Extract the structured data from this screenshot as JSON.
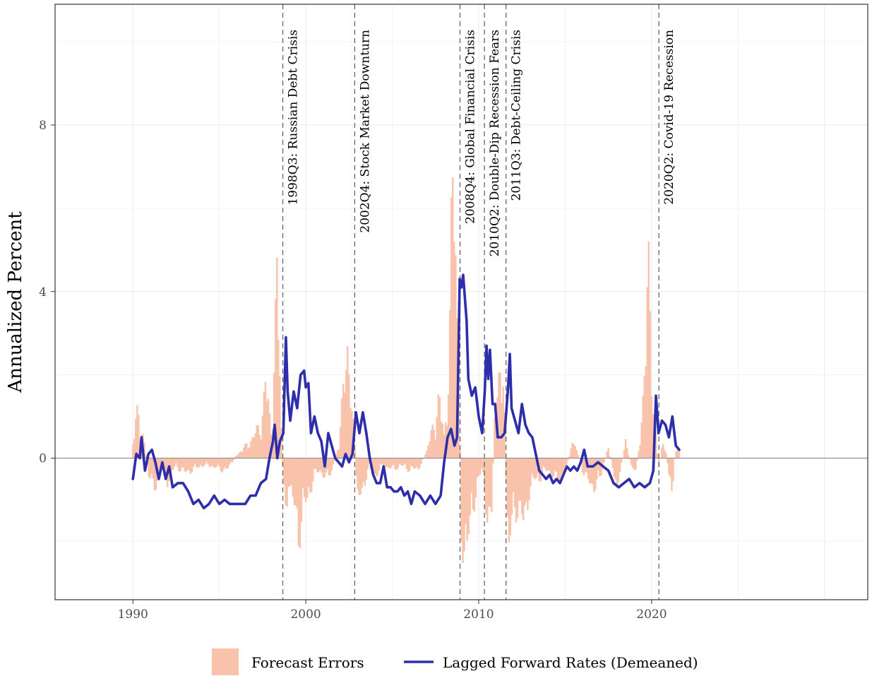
{
  "colors": {
    "bars": "#f8c2ab",
    "line": "#2e2eaa",
    "event_line": "#666666",
    "zero_line": "#8c8c8c",
    "grid": "#ebebeb",
    "panel_border": "#333333"
  },
  "chart_data": {
    "type": "bar",
    "xlabel": "",
    "ylabel": "Annualized Percent",
    "xlim": [
      1985.5,
      2032.5
    ],
    "ylim": [
      -3.4,
      10.9
    ],
    "xticks": [
      1990,
      2000,
      2010,
      2020
    ],
    "xtick_labels": [
      "1990",
      "2000",
      "2010",
      "2020"
    ],
    "yticks": [
      0,
      4,
      8
    ],
    "ytick_labels": [
      "0",
      "4",
      "8"
    ],
    "grid": true,
    "legend_position": "bottom",
    "events": [
      {
        "x": 1998.67,
        "label": "1998Q3:  Russian Debt Crisis"
      },
      {
        "x": 2002.83,
        "label": "2002Q4:  Stock Market Downturn"
      },
      {
        "x": 2008.92,
        "label": "2008Q4:  Global Financial Crisis"
      },
      {
        "x": 2010.33,
        "label": "2010Q2:  Double-Dip Recession Fears"
      },
      {
        "x": 2011.58,
        "label": "2011Q3:  Debt-Ceiling Crisis"
      },
      {
        "x": 2020.42,
        "label": "2020Q2:  Covid-19 Recession"
      }
    ],
    "series": [
      {
        "name": "Forecast Errors",
        "type": "bar",
        "anchors": [
          [
            1990.0,
            0.4
          ],
          [
            1990.3,
            1.3
          ],
          [
            1990.6,
            0.6
          ],
          [
            1990.9,
            -0.4
          ],
          [
            1991.2,
            -0.9
          ],
          [
            1991.6,
            -0.3
          ],
          [
            1992.0,
            -0.6
          ],
          [
            1992.5,
            -0.2
          ],
          [
            1993.0,
            -0.4
          ],
          [
            1993.5,
            -0.3
          ],
          [
            1994.0,
            -0.2
          ],
          [
            1994.5,
            -0.2
          ],
          [
            1995.0,
            -0.3
          ],
          [
            1995.5,
            -0.3
          ],
          [
            1996.0,
            0.1
          ],
          [
            1996.5,
            0.3
          ],
          [
            1997.0,
            0.6
          ],
          [
            1997.4,
            0.9
          ],
          [
            1997.7,
            2.0
          ],
          [
            1998.0,
            0.8
          ],
          [
            1998.2,
            3.0
          ],
          [
            1998.35,
            4.6
          ],
          [
            1998.5,
            2.4
          ],
          [
            1998.6,
            0.5
          ],
          [
            1998.8,
            -1.7
          ],
          [
            1999.0,
            -0.6
          ],
          [
            1999.3,
            -1.3
          ],
          [
            1999.6,
            -2.0
          ],
          [
            1999.9,
            -1.4
          ],
          [
            2000.2,
            -0.9
          ],
          [
            2000.5,
            -0.5
          ],
          [
            2000.8,
            -0.3
          ],
          [
            2001.2,
            -0.6
          ],
          [
            2001.6,
            -0.2
          ],
          [
            2001.9,
            0.4
          ],
          [
            2002.2,
            1.8
          ],
          [
            2002.4,
            3.4
          ],
          [
            2002.6,
            1.8
          ],
          [
            2002.8,
            0.5
          ],
          [
            2003.0,
            -1.3
          ],
          [
            2003.3,
            -0.8
          ],
          [
            2003.6,
            -0.3
          ],
          [
            2004.0,
            -0.5
          ],
          [
            2004.5,
            -0.2
          ],
          [
            2005.0,
            -0.3
          ],
          [
            2005.5,
            -0.2
          ],
          [
            2006.0,
            -0.3
          ],
          [
            2006.5,
            -0.3
          ],
          [
            2007.0,
            0.2
          ],
          [
            2007.4,
            0.9
          ],
          [
            2007.7,
            1.6
          ],
          [
            2008.0,
            0.6
          ],
          [
            2008.3,
            2.5
          ],
          [
            2008.5,
            7.8
          ],
          [
            2008.7,
            5.2
          ],
          [
            2008.85,
            2.2
          ],
          [
            2009.0,
            -1.9
          ],
          [
            2009.3,
            -2.8
          ],
          [
            2009.6,
            -1.3
          ],
          [
            2009.9,
            -0.9
          ],
          [
            2010.2,
            -0.2
          ],
          [
            2010.5,
            -1.6
          ],
          [
            2010.7,
            -2.4
          ],
          [
            2010.9,
            1.0
          ],
          [
            2011.1,
            1.5
          ],
          [
            2011.3,
            3.6
          ],
          [
            2011.5,
            1.0
          ],
          [
            2011.7,
            -2.5
          ],
          [
            2012.0,
            -1.6
          ],
          [
            2012.3,
            -1.2
          ],
          [
            2012.6,
            -1.9
          ],
          [
            2012.9,
            -0.9
          ],
          [
            2013.2,
            -0.6
          ],
          [
            2013.6,
            -0.5
          ],
          [
            2014.0,
            -0.3
          ],
          [
            2014.5,
            -0.6
          ],
          [
            2015.0,
            -0.4
          ],
          [
            2015.5,
            0.5
          ],
          [
            2016.0,
            -0.3
          ],
          [
            2016.5,
            -0.8
          ],
          [
            2017.0,
            -0.6
          ],
          [
            2017.5,
            0.3
          ],
          [
            2018.0,
            -0.8
          ],
          [
            2018.5,
            0.4
          ],
          [
            2019.0,
            -0.5
          ],
          [
            2019.3,
            0.3
          ],
          [
            2019.6,
            2.6
          ],
          [
            2019.8,
            4.9
          ],
          [
            2020.0,
            2.4
          ],
          [
            2020.2,
            1.0
          ],
          [
            2020.4,
            -0.3
          ],
          [
            2020.7,
            0.6
          ],
          [
            2021.0,
            -0.4
          ],
          [
            2021.2,
            -0.9
          ],
          [
            2021.4,
            0.4
          ],
          [
            2021.6,
            0.2
          ]
        ]
      },
      {
        "name": "Lagged Forward Rates (Demeaned)",
        "type": "line",
        "points": [
          [
            1990.0,
            -0.5
          ],
          [
            1990.2,
            0.1
          ],
          [
            1990.4,
            0.0
          ],
          [
            1990.5,
            0.5
          ],
          [
            1990.7,
            -0.3
          ],
          [
            1990.9,
            0.1
          ],
          [
            1991.1,
            0.2
          ],
          [
            1991.3,
            -0.1
          ],
          [
            1991.5,
            -0.5
          ],
          [
            1991.7,
            -0.1
          ],
          [
            1991.9,
            -0.5
          ],
          [
            1992.1,
            -0.2
          ],
          [
            1992.3,
            -0.7
          ],
          [
            1992.6,
            -0.6
          ],
          [
            1992.9,
            -0.6
          ],
          [
            1993.2,
            -0.8
          ],
          [
            1993.5,
            -1.1
          ],
          [
            1993.8,
            -1.0
          ],
          [
            1994.1,
            -1.2
          ],
          [
            1994.4,
            -1.1
          ],
          [
            1994.7,
            -0.9
          ],
          [
            1995.0,
            -1.1
          ],
          [
            1995.3,
            -1.0
          ],
          [
            1995.6,
            -1.1
          ],
          [
            1995.9,
            -1.1
          ],
          [
            1996.2,
            -1.1
          ],
          [
            1996.5,
            -1.1
          ],
          [
            1996.8,
            -0.9
          ],
          [
            1997.1,
            -0.9
          ],
          [
            1997.4,
            -0.6
          ],
          [
            1997.7,
            -0.5
          ],
          [
            1997.9,
            0.0
          ],
          [
            1998.1,
            0.4
          ],
          [
            1998.2,
            0.8
          ],
          [
            1998.35,
            0.0
          ],
          [
            1998.5,
            0.4
          ],
          [
            1998.7,
            0.6
          ],
          [
            1998.85,
            2.9
          ],
          [
            1998.95,
            1.6
          ],
          [
            1999.1,
            0.9
          ],
          [
            1999.3,
            1.6
          ],
          [
            1999.5,
            1.2
          ],
          [
            1999.7,
            2.0
          ],
          [
            1999.9,
            2.1
          ],
          [
            2000.0,
            1.7
          ],
          [
            2000.15,
            1.8
          ],
          [
            2000.3,
            0.6
          ],
          [
            2000.5,
            1.0
          ],
          [
            2000.7,
            0.6
          ],
          [
            2000.9,
            0.4
          ],
          [
            2001.1,
            -0.2
          ],
          [
            2001.3,
            0.6
          ],
          [
            2001.5,
            0.3
          ],
          [
            2001.7,
            0.0
          ],
          [
            2001.9,
            -0.1
          ],
          [
            2002.1,
            -0.2
          ],
          [
            2002.3,
            0.1
          ],
          [
            2002.5,
            -0.1
          ],
          [
            2002.7,
            0.1
          ],
          [
            2002.9,
            1.1
          ],
          [
            2003.1,
            0.6
          ],
          [
            2003.3,
            1.1
          ],
          [
            2003.5,
            0.6
          ],
          [
            2003.7,
            0.0
          ],
          [
            2003.9,
            -0.4
          ],
          [
            2004.1,
            -0.6
          ],
          [
            2004.3,
            -0.6
          ],
          [
            2004.5,
            -0.2
          ],
          [
            2004.7,
            -0.7
          ],
          [
            2004.9,
            -0.7
          ],
          [
            2005.1,
            -0.8
          ],
          [
            2005.3,
            -0.8
          ],
          [
            2005.5,
            -0.7
          ],
          [
            2005.7,
            -0.9
          ],
          [
            2005.9,
            -0.8
          ],
          [
            2006.1,
            -1.1
          ],
          [
            2006.3,
            -0.8
          ],
          [
            2006.6,
            -0.9
          ],
          [
            2006.9,
            -1.1
          ],
          [
            2007.2,
            -0.9
          ],
          [
            2007.5,
            -1.1
          ],
          [
            2007.8,
            -0.9
          ],
          [
            2008.0,
            -0.1
          ],
          [
            2008.2,
            0.5
          ],
          [
            2008.4,
            0.7
          ],
          [
            2008.6,
            0.3
          ],
          [
            2008.75,
            0.5
          ],
          [
            2008.9,
            4.3
          ],
          [
            2009.0,
            4.1
          ],
          [
            2009.1,
            4.4
          ],
          [
            2009.3,
            3.3
          ],
          [
            2009.4,
            1.9
          ],
          [
            2009.6,
            1.5
          ],
          [
            2009.8,
            1.7
          ],
          [
            2010.0,
            1.0
          ],
          [
            2010.2,
            0.6
          ],
          [
            2010.35,
            1.6
          ],
          [
            2010.45,
            2.7
          ],
          [
            2010.55,
            1.9
          ],
          [
            2010.65,
            2.6
          ],
          [
            2010.8,
            1.3
          ],
          [
            2010.95,
            1.3
          ],
          [
            2011.1,
            0.5
          ],
          [
            2011.3,
            0.5
          ],
          [
            2011.5,
            0.6
          ],
          [
            2011.7,
            1.7
          ],
          [
            2011.8,
            2.5
          ],
          [
            2011.9,
            1.2
          ],
          [
            2012.1,
            0.9
          ],
          [
            2012.3,
            0.6
          ],
          [
            2012.5,
            1.3
          ],
          [
            2012.7,
            0.8
          ],
          [
            2012.9,
            0.6
          ],
          [
            2013.1,
            0.5
          ],
          [
            2013.3,
            0.1
          ],
          [
            2013.5,
            -0.3
          ],
          [
            2013.7,
            -0.4
          ],
          [
            2013.9,
            -0.5
          ],
          [
            2014.1,
            -0.4
          ],
          [
            2014.3,
            -0.6
          ],
          [
            2014.5,
            -0.5
          ],
          [
            2014.7,
            -0.6
          ],
          [
            2014.9,
            -0.4
          ],
          [
            2015.1,
            -0.2
          ],
          [
            2015.3,
            -0.3
          ],
          [
            2015.5,
            -0.2
          ],
          [
            2015.7,
            -0.3
          ],
          [
            2015.9,
            -0.1
          ],
          [
            2016.1,
            0.2
          ],
          [
            2016.3,
            -0.2
          ],
          [
            2016.6,
            -0.2
          ],
          [
            2016.9,
            -0.1
          ],
          [
            2017.2,
            -0.2
          ],
          [
            2017.5,
            -0.3
          ],
          [
            2017.8,
            -0.6
          ],
          [
            2018.1,
            -0.7
          ],
          [
            2018.4,
            -0.6
          ],
          [
            2018.7,
            -0.5
          ],
          [
            2019.0,
            -0.7
          ],
          [
            2019.3,
            -0.6
          ],
          [
            2019.6,
            -0.7
          ],
          [
            2019.9,
            -0.6
          ],
          [
            2020.1,
            -0.3
          ],
          [
            2020.25,
            1.5
          ],
          [
            2020.4,
            0.6
          ],
          [
            2020.6,
            0.9
          ],
          [
            2020.8,
            0.8
          ],
          [
            2021.0,
            0.5
          ],
          [
            2021.2,
            1.0
          ],
          [
            2021.4,
            0.3
          ],
          [
            2021.6,
            0.2
          ]
        ]
      }
    ]
  }
}
